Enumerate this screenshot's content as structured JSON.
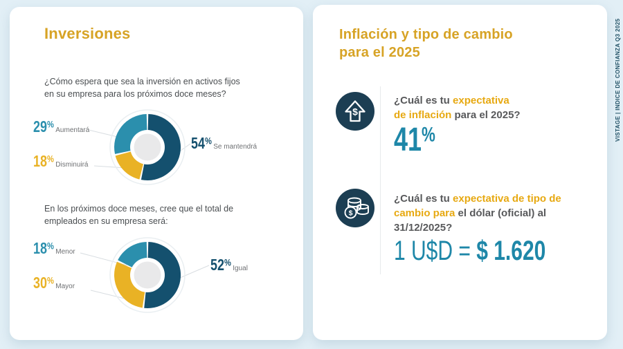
{
  "brand": {
    "side_text": "VISTAGE | INDICE DE CONFIANZA Q3 2025"
  },
  "left_panel": {
    "title": "Inversiones",
    "question1": "¿Cómo espera que sea la inversión en activos fijos\nen su empresa para los próximos doce meses?",
    "question2": "En los próximos doce meses, cree que el total de\nempleados en su empresa será:"
  },
  "right_panel": {
    "title": "Inflación y tipo de cambio\npara el 2025",
    "q1_segments": [
      {
        "t": "¿Cuál es tu ",
        "c": "g"
      },
      {
        "t": "expectativa\nde inflación",
        "c": "y"
      },
      {
        "t": " para el 2025?",
        "c": "g"
      }
    ],
    "q1_answer": "41%",
    "q2_segments": [
      {
        "t": "¿Cuál es tu ",
        "c": "g"
      },
      {
        "t": "expectativa de tipo de\ncambio para ",
        "c": "y"
      },
      {
        "t": "el dólar (oficial) al\n31/12/2025?",
        "c": "g"
      }
    ],
    "q2_answer_prefix": "1 U$D = ",
    "q2_answer_value": "$ 1.620"
  },
  "colors": {
    "gold_title": "#d7a325",
    "highlight_gold": "#e7a912",
    "teal": "#2b8fad",
    "navy": "#14506e",
    "gold_segment": "#e9b225",
    "answer_teal": "#1e87a8",
    "icon_navy": "#1c3e53",
    "text_gray": "#58595b"
  },
  "chart_data": [
    {
      "type": "donut",
      "question": "¿Cómo espera que sea la inversión en activos fijos en su empresa para los próximos doce meses?",
      "start_angle": 0,
      "segments": [
        {
          "label": "Se mantendrá",
          "value": 54,
          "display": "54%",
          "color": "#14506e",
          "callout": "right"
        },
        {
          "label": "Disminuirá",
          "value": 18,
          "display": "18%",
          "color": "#e9b225",
          "callout": "left-bottom"
        },
        {
          "label": "Aumentará",
          "value": 29,
          "display": "29%",
          "color": "#2b8fad",
          "callout": "left-top"
        }
      ]
    },
    {
      "type": "donut",
      "question": "En los próximos doce meses, cree que el total de empleados en su empresa será:",
      "start_angle": 0,
      "segments": [
        {
          "label": "Igual",
          "value": 52,
          "display": "52%",
          "color": "#14506e",
          "callout": "right"
        },
        {
          "label": "Mayor",
          "value": 30,
          "display": "30%",
          "color": "#e9b225",
          "callout": "left-bottom"
        },
        {
          "label": "Menor",
          "value": 18,
          "display": "18%",
          "color": "#2b8fad",
          "callout": "left-top"
        }
      ]
    }
  ]
}
